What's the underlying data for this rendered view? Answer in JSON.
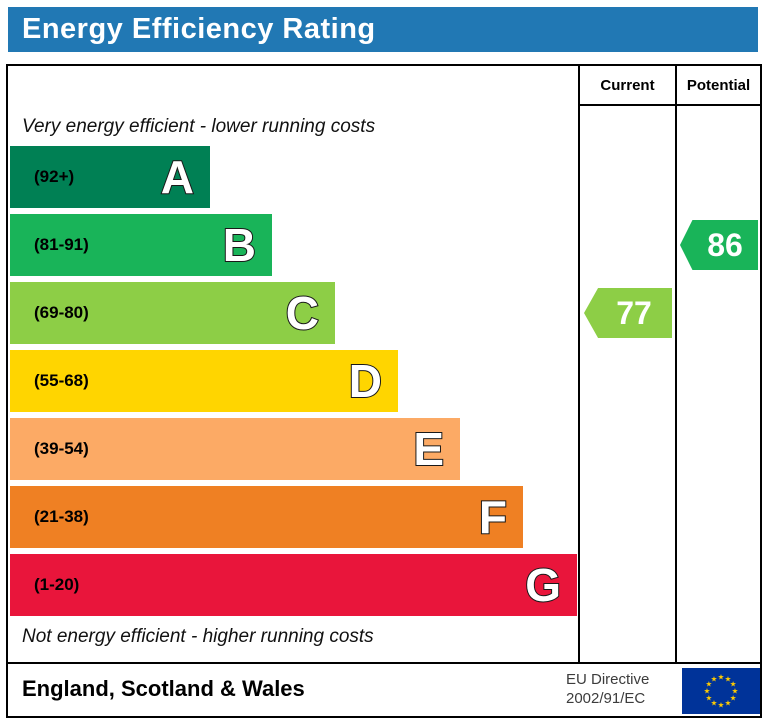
{
  "header": {
    "title": "Energy Efficiency Rating",
    "bg_color": "#2178b4"
  },
  "columns": {
    "current": "Current",
    "potential": "Potential"
  },
  "notes": {
    "top": "Very energy efficient - lower running costs",
    "bottom": "Not energy efficient - higher running costs"
  },
  "bands": [
    {
      "letter": "A",
      "range": "(92+)",
      "color": "#008054",
      "width_pct": 35
    },
    {
      "letter": "B",
      "range": "(81-91)",
      "color": "#19b459",
      "width_pct": 46
    },
    {
      "letter": "C",
      "range": "(69-80)",
      "color": "#8dce46",
      "width_pct": 57
    },
    {
      "letter": "D",
      "range": "(55-68)",
      "color": "#ffd500",
      "width_pct": 68
    },
    {
      "letter": "E",
      "range": "(39-54)",
      "color": "#fcaa65",
      "width_pct": 79
    },
    {
      "letter": "F",
      "range": "(21-38)",
      "color": "#ef8023",
      "width_pct": 90
    },
    {
      "letter": "G",
      "range": "(1-20)",
      "color": "#e9153b",
      "width_pct": 99.5
    }
  ],
  "markers": {
    "current": {
      "value": "77",
      "color": "#8dce46",
      "band_index": 2
    },
    "potential": {
      "value": "86",
      "color": "#19b459",
      "band_index": 1
    }
  },
  "footer": {
    "region": "England, Scotland & Wales",
    "directive_line1": "EU Directive",
    "directive_line2": "2002/91/EC",
    "flag_bg": "#003399",
    "flag_star_color": "#ffcc00"
  },
  "chart_data": {
    "type": "bar",
    "title": "Energy Efficiency Rating",
    "categories": [
      "A",
      "B",
      "C",
      "D",
      "E",
      "F",
      "G"
    ],
    "ranges": [
      "92+",
      "81-91",
      "69-80",
      "55-68",
      "39-54",
      "21-38",
      "1-20"
    ],
    "values_bar_width_pct": [
      35,
      46,
      57,
      68,
      79,
      90,
      99.5
    ],
    "colors": [
      "#008054",
      "#19b459",
      "#8dce46",
      "#ffd500",
      "#fcaa65",
      "#ef8023",
      "#e9153b"
    ],
    "current_rating": 77,
    "current_band": "C",
    "potential_rating": 86,
    "potential_band": "B",
    "top_annotation": "Very energy efficient - lower running costs",
    "bottom_annotation": "Not energy efficient - higher running costs",
    "region_note": "England, Scotland & Wales",
    "directive_note": "EU Directive 2002/91/EC",
    "legend_position": "none",
    "grid": false
  }
}
